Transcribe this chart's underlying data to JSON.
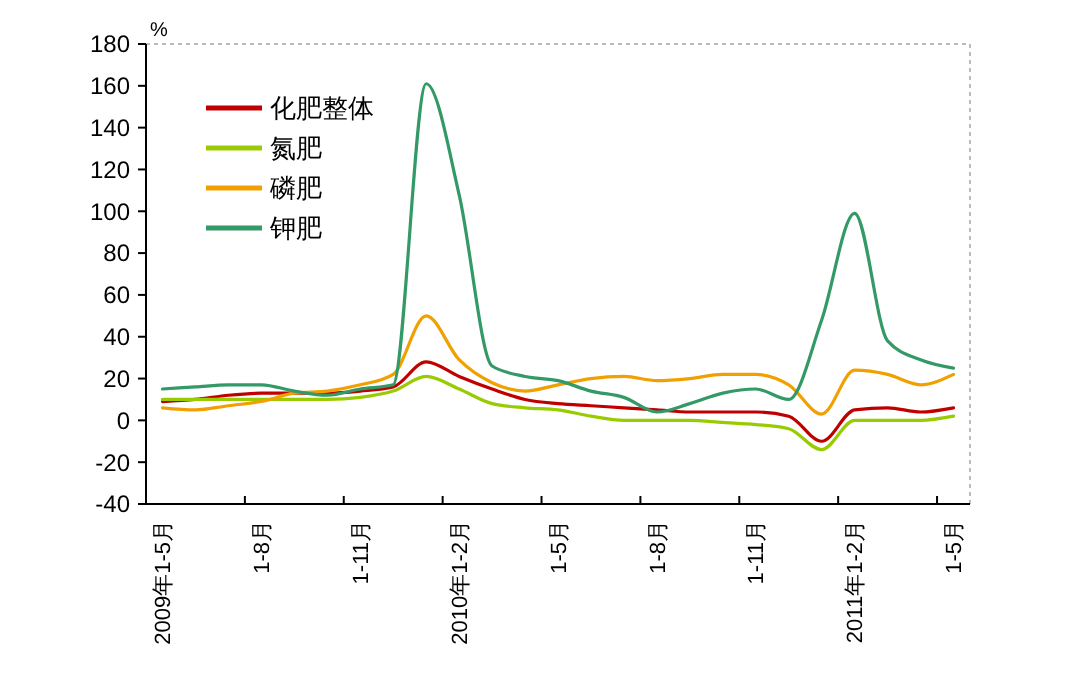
{
  "chart_data": {
    "type": "line",
    "ylabel": "%",
    "categories": [
      "2009年1-5月",
      null,
      null,
      "1-8月",
      null,
      null,
      "1-11月",
      null,
      null,
      "2010年1-2月",
      null,
      null,
      "1-5月",
      null,
      null,
      "1-8月",
      null,
      null,
      "1-11月",
      null,
      null,
      "2011年1-2月",
      null,
      null,
      "1-5月"
    ],
    "series": [
      {
        "name": "化肥整体",
        "color": "#c00000",
        "values": [
          9,
          10,
          12,
          13,
          13,
          13,
          14,
          16,
          28,
          21,
          15,
          10,
          8,
          7,
          6,
          5,
          4,
          4,
          4,
          2,
          -10,
          5,
          6,
          4,
          6
        ]
      },
      {
        "name": "氮肥",
        "color": "#99cc00",
        "values": [
          10,
          10,
          10,
          10,
          10,
          10,
          11,
          14,
          21,
          15,
          8,
          6,
          5,
          2,
          0,
          0,
          0,
          -1,
          -2,
          -4,
          -14,
          0,
          0,
          0,
          2
        ]
      },
      {
        "name": "磷肥",
        "color": "#f0a000",
        "values": [
          6,
          5,
          7,
          9,
          13,
          14,
          17,
          22,
          50,
          29,
          18,
          14,
          17,
          20,
          21,
          19,
          20,
          22,
          22,
          17,
          3,
          24,
          22,
          17,
          22
        ]
      },
      {
        "name": "钾肥",
        "color": "#339966",
        "values": [
          15,
          16,
          17,
          17,
          14,
          12,
          15,
          17,
          161,
          108,
          26,
          21,
          19,
          14,
          11,
          4,
          8,
          13,
          15,
          10,
          48,
          99,
          38,
          29,
          25
        ]
      }
    ],
    "ylim": [
      -40,
      180
    ],
    "yticks": [
      -40,
      -20,
      0,
      20,
      40,
      60,
      80,
      100,
      120,
      140,
      160,
      180
    ],
    "legend": "top left",
    "line_style": "solid",
    "marker": "none"
  }
}
